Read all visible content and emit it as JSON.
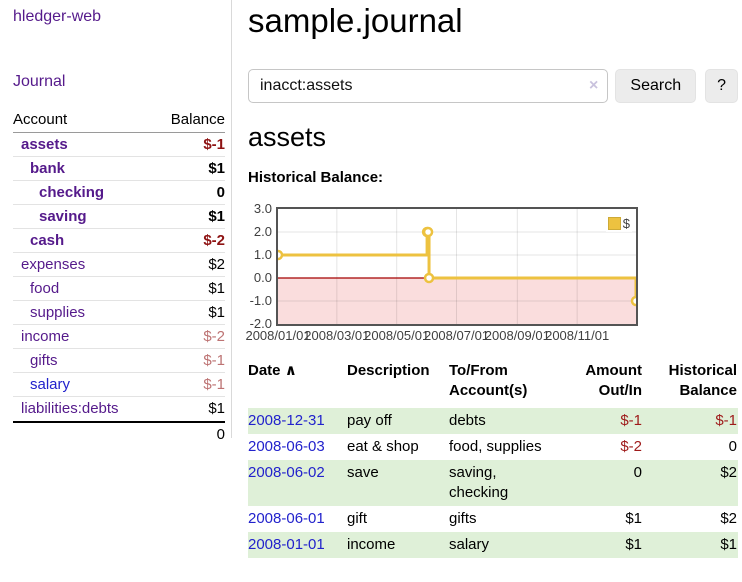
{
  "app": {
    "brand": "hledger-web",
    "nav_journal": "Journal"
  },
  "sidebar": {
    "header": {
      "account": "Account",
      "balance": "Balance"
    },
    "accounts": [
      {
        "name": "assets",
        "depth": 1,
        "balance": "$-1",
        "bold": true,
        "neg": true
      },
      {
        "name": "bank",
        "depth": 2,
        "balance": "$1",
        "bold": true
      },
      {
        "name": "checking",
        "depth": 3,
        "balance": "0",
        "bold": true
      },
      {
        "name": "saving",
        "depth": 3,
        "balance": "$1",
        "bold": true
      },
      {
        "name": "cash",
        "depth": 2,
        "balance": "$-2",
        "bold": true,
        "neg": true
      },
      {
        "name": "expenses",
        "depth": 1,
        "balance": "$2"
      },
      {
        "name": "food",
        "depth": 2,
        "balance": "$1"
      },
      {
        "name": "supplies",
        "depth": 2,
        "balance": "$1"
      },
      {
        "name": "income",
        "depth": 1,
        "balance": "$-2",
        "neg": true
      },
      {
        "name": "gifts",
        "depth": 2,
        "balance": "$-1",
        "neg": true
      },
      {
        "name": "salary",
        "depth": 2,
        "balance": "$-1",
        "neg": true,
        "blue": true
      },
      {
        "name": "liabilities:debts",
        "depth": 1,
        "balance": "$1"
      }
    ],
    "total": "0"
  },
  "header": {
    "title": "sample.journal"
  },
  "search": {
    "value": "inacct:assets",
    "clear_icon": "×",
    "button": "Search",
    "help_button": "?"
  },
  "register": {
    "heading": "assets",
    "chart_label": "Historical Balance:"
  },
  "chart_data": {
    "type": "line",
    "title": "Historical Balance",
    "step": true,
    "series_name": "$",
    "series_color": "#edc240",
    "legend": [
      {
        "label": "$",
        "color": "#edc240"
      }
    ],
    "legend_position": "top-right",
    "grid": true,
    "ylim": [
      -2,
      3
    ],
    "y_ticks": [
      "3.0",
      "2.0",
      "1.0",
      "0.0",
      "-1.0",
      "-2.0"
    ],
    "x_ticks": [
      "2008/01/01",
      "2008/03/01",
      "2008/05/01",
      "2008/07/01",
      "2008/09/01",
      "2008/11/01"
    ],
    "points": [
      {
        "date": "2008-01-01",
        "value": 1
      },
      {
        "date": "2008-06-01",
        "value": 2
      },
      {
        "date": "2008-06-02",
        "value": 2
      },
      {
        "date": "2008-06-03",
        "value": 0
      },
      {
        "date": "2008-12-31",
        "value": -1
      }
    ],
    "negative_region_fill": "#fadddd",
    "zero_line_color": "#a40000"
  },
  "table": {
    "headers": {
      "date": "Date",
      "sort_icon": "∧",
      "description": "Description",
      "accounts": "To/From Account(s)",
      "amount": "Amount Out/In",
      "balance": "Historical Balance"
    },
    "rows": [
      {
        "date": "2008-12-31",
        "description": "pay off",
        "accounts": "debts",
        "amount": "$-1",
        "balance": "$-1",
        "amount_neg": true,
        "balance_neg": true,
        "shade": true
      },
      {
        "date": "2008-06-03",
        "description": "eat & shop",
        "accounts": "food, supplies",
        "amount": "$-2",
        "balance": "0",
        "amount_neg": true
      },
      {
        "date": "2008-06-02",
        "description": "save",
        "accounts": "saving, checking",
        "amount": "0",
        "balance": "$2",
        "shade": true
      },
      {
        "date": "2008-06-01",
        "description": "gift",
        "accounts": "gifts",
        "amount": "$1",
        "balance": "$2"
      },
      {
        "date": "2008-01-01",
        "description": "income",
        "accounts": "salary",
        "amount": "$1",
        "balance": "$1",
        "shade": true
      }
    ]
  },
  "colors": {
    "link_purple": "#551a8b",
    "link_blue": "#2222cc",
    "negative_dark": "#8e1313",
    "negative_soft": "#bd7373",
    "negative_table": "#9e1a1a",
    "row_green": "#dff0d8",
    "chart_yellow": "#edc240",
    "chart_negative_fill": "#fadddd",
    "chart_zero_line": "#a40000",
    "button_bg": "#ececec"
  }
}
